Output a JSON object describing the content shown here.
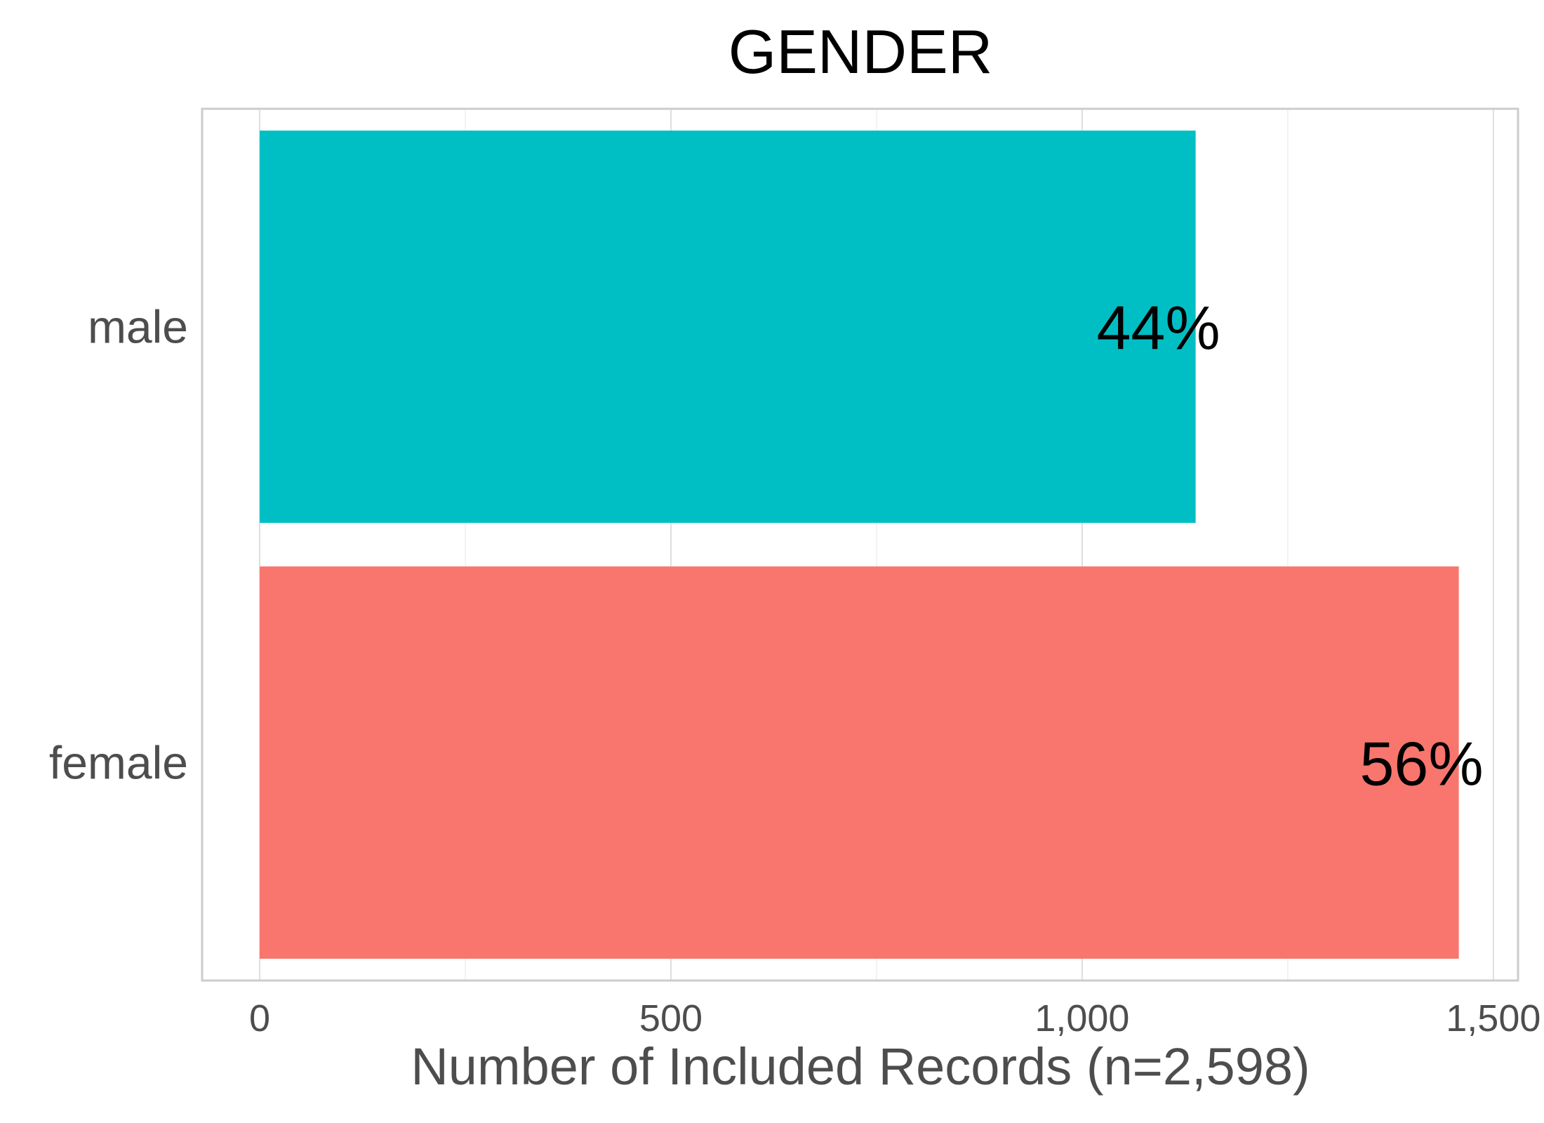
{
  "chart_data": {
    "type": "bar",
    "orientation": "horizontal",
    "title": "GENDER",
    "xlabel": "Number of Included Records (n=2,598)",
    "ylabel": "",
    "categories": [
      "male",
      "female"
    ],
    "values": [
      1138,
      1458
    ],
    "data_labels": [
      "44%",
      "56%"
    ],
    "colors": [
      "#00BFC4",
      "#F8766D"
    ],
    "xlim": [
      -70,
      1530
    ],
    "xticks": [
      0,
      500,
      1000,
      1500
    ],
    "xtick_labels": [
      "0",
      "500",
      "1,000",
      "1,500"
    ],
    "grid": true,
    "legend": "none"
  }
}
